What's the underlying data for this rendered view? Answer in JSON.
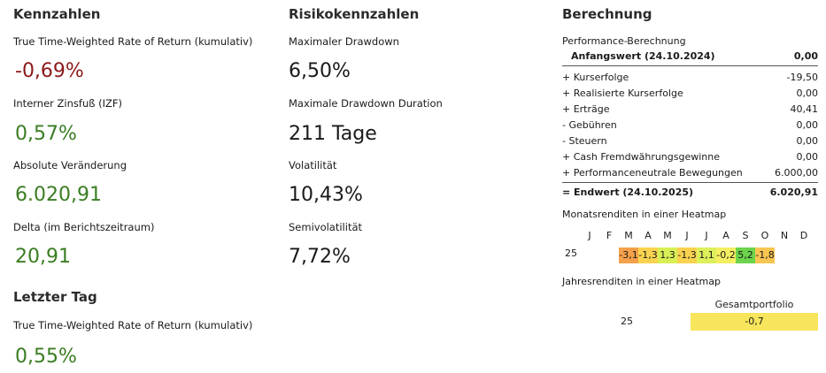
{
  "kennzahlen": {
    "title": "Kennzahlen",
    "items": [
      {
        "label": "True Time-Weighted Rate of Return (kumulativ)",
        "value": "-0,69%",
        "color": "#8b1a1a"
      },
      {
        "label": "Interner Zinsfuß (IZF)",
        "value": "0,57%",
        "color": "#3b7d23"
      },
      {
        "label": "Absolute Veränderung",
        "value": "6.020,91",
        "color": "#3b7d23"
      },
      {
        "label": "Delta (im Berichtszeitraum)",
        "value": "20,91",
        "color": "#3b7d23"
      }
    ]
  },
  "letzter_tag": {
    "title": "Letzter Tag",
    "items": [
      {
        "label": "True Time-Weighted Rate of Return (kumulativ)",
        "value": "0,55%",
        "color": "#3b7d23"
      }
    ]
  },
  "risiko": {
    "title": "Risikokennzahlen",
    "items": [
      {
        "label": "Maximaler Drawdown",
        "value": "6,50%"
      },
      {
        "label": "Maximale Drawdown Duration",
        "value": "211 Tage"
      },
      {
        "label": "Volatilität",
        "value": "10,43%"
      },
      {
        "label": "Semivolatilität",
        "value": "7,72%"
      }
    ]
  },
  "berechnung": {
    "title": "Berechnung",
    "subtitle": "Performance-Berechnung",
    "start": {
      "label": "Anfangswert (24.10.2024)",
      "value": "0,00"
    },
    "rows": [
      {
        "label": "+ Kurserfolge",
        "value": "-19,50"
      },
      {
        "label": "+ Realisierte Kurserfolge",
        "value": "0,00"
      },
      {
        "label": "+ Erträge",
        "value": "40,41"
      },
      {
        "label": "-  Gebühren",
        "value": "0,00"
      },
      {
        "label": "-  Steuern",
        "value": "0,00"
      },
      {
        "label": "+ Cash Fremdwährungsgewinne",
        "value": "0,00"
      },
      {
        "label": "+ Performanceneutrale Bewegungen",
        "value": "6.000,00"
      }
    ],
    "end": {
      "label": "= Endwert (24.10.2025)",
      "value": "6.020,91"
    }
  },
  "monthly_heatmap": {
    "title": "Monatsrenditen in einer Heatmap",
    "months": [
      "J",
      "F",
      "M",
      "A",
      "M",
      "J",
      "J",
      "A",
      "S",
      "O",
      "N",
      "D"
    ],
    "year": "25",
    "cells": [
      {
        "month": "M",
        "value": "-3,1",
        "color": "#f5a04a"
      },
      {
        "month": "A",
        "value": "-1,3",
        "color": "#f9d350"
      },
      {
        "month": "M",
        "value": "1,3",
        "color": "#d9ef55"
      },
      {
        "month": "J",
        "value": "-1,3",
        "color": "#f9d350"
      },
      {
        "month": "J",
        "value": "1,1",
        "color": "#ddf05c"
      },
      {
        "month": "A",
        "value": "-0,2",
        "color": "#f5ee63"
      },
      {
        "month": "S",
        "value": "5,2",
        "color": "#6cd44c"
      },
      {
        "month": "O",
        "value": "-1,8",
        "color": "#f8c653"
      }
    ]
  },
  "yearly_heatmap": {
    "title": "Jahresrenditen in einer Heatmap",
    "column": "Gesamtportfolio",
    "year": "25",
    "value": "-0,7",
    "color": "#f7e55c"
  }
}
